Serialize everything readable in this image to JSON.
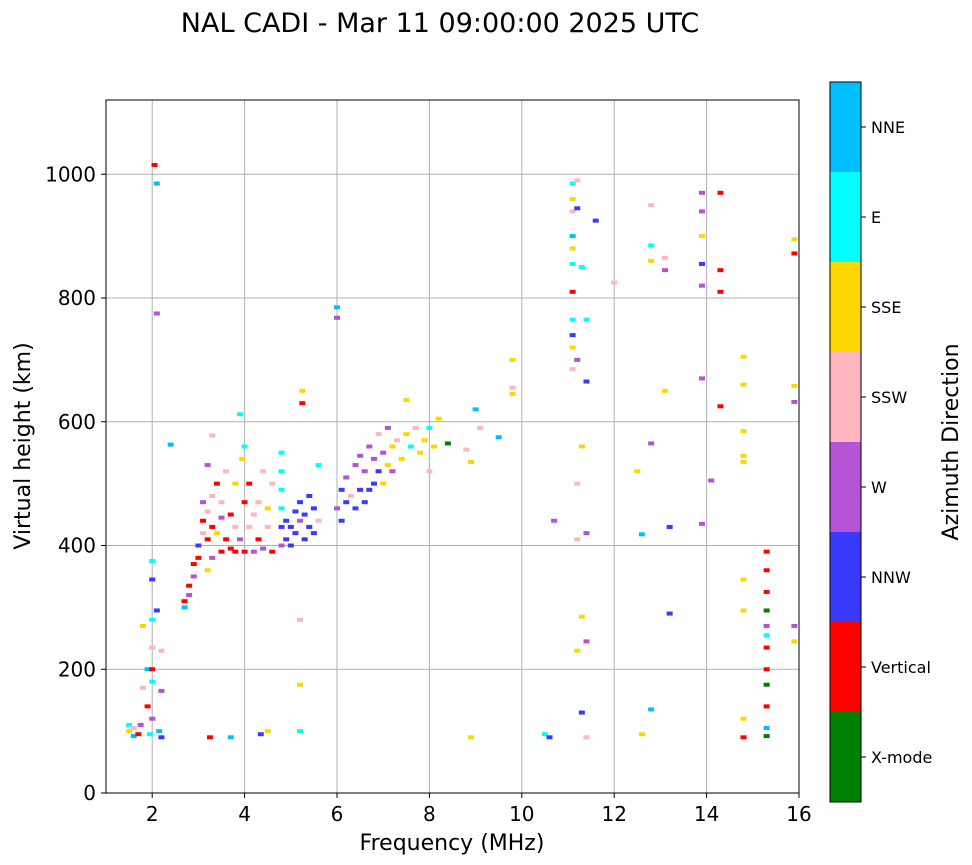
{
  "chart_data": {
    "type": "scatter",
    "title": "NAL CADI - Mar 11 09:00:00 2025 UTC",
    "xlabel": "Frequency (MHz)",
    "ylabel": "Virtual height (km)",
    "xlim": [
      1,
      16
    ],
    "ylim": [
      0,
      1120
    ],
    "x_ticks": [
      2,
      4,
      6,
      8,
      10,
      12,
      14,
      16
    ],
    "y_ticks": [
      0,
      200,
      400,
      600,
      800,
      1000
    ],
    "grid": true,
    "colorbar": {
      "title": "Azimuth Direction",
      "categories": [
        {
          "name": "X-mode",
          "color": "#008000"
        },
        {
          "name": "Vertical",
          "color": "#ff0000"
        },
        {
          "name": "NNW",
          "color": "#3a3aff"
        },
        {
          "name": "W",
          "color": "#b453d6"
        },
        {
          "name": "SSW",
          "color": "#ffb6c1"
        },
        {
          "name": "SSE",
          "color": "#ffd700"
        },
        {
          "name": "E",
          "color": "#00ffff"
        },
        {
          "name": "NNE",
          "color": "#00bfff"
        }
      ]
    },
    "points": [
      [
        1.5,
        110,
        "E"
      ],
      [
        1.5,
        100,
        "SSE"
      ],
      [
        1.6,
        92,
        "NNE"
      ],
      [
        1.6,
        105,
        "SSW"
      ],
      [
        1.7,
        95,
        "Vertical"
      ],
      [
        1.75,
        110,
        "W"
      ],
      [
        1.8,
        170,
        "SSW"
      ],
      [
        1.8,
        270,
        "SSE"
      ],
      [
        1.9,
        140,
        "Vertical"
      ],
      [
        1.9,
        200,
        "NNE"
      ],
      [
        1.95,
        95,
        "E"
      ],
      [
        2.0,
        120,
        "W"
      ],
      [
        2.0,
        180,
        "E"
      ],
      [
        2.0,
        200,
        "Vertical"
      ],
      [
        2.0,
        235,
        "SSW"
      ],
      [
        2.0,
        280,
        "E"
      ],
      [
        2.0,
        345,
        "NNW"
      ],
      [
        2.0,
        375,
        "E"
      ],
      [
        2.05,
        1015,
        "Vertical"
      ],
      [
        2.1,
        985,
        "NNE"
      ],
      [
        2.1,
        295,
        "NNW"
      ],
      [
        2.1,
        775,
        "W"
      ],
      [
        2.15,
        100,
        "NNE"
      ],
      [
        2.2,
        90,
        "NNW"
      ],
      [
        2.2,
        165,
        "W"
      ],
      [
        2.2,
        230,
        "SSW"
      ],
      [
        2.4,
        563,
        "NNE"
      ],
      [
        2.7,
        300,
        "NNE"
      ],
      [
        2.7,
        310,
        "Vertical"
      ],
      [
        2.8,
        320,
        "W"
      ],
      [
        2.8,
        335,
        "Vertical"
      ],
      [
        2.9,
        350,
        "W"
      ],
      [
        2.9,
        370,
        "Vertical"
      ],
      [
        3.0,
        380,
        "Vertical"
      ],
      [
        3.0,
        400,
        "NNW"
      ],
      [
        3.1,
        420,
        "SSW"
      ],
      [
        3.1,
        440,
        "Vertical"
      ],
      [
        3.1,
        470,
        "W"
      ],
      [
        3.2,
        360,
        "SSE"
      ],
      [
        3.2,
        410,
        "Vertical"
      ],
      [
        3.2,
        455,
        "SSW"
      ],
      [
        3.2,
        530,
        "W"
      ],
      [
        3.25,
        90,
        "Vertical"
      ],
      [
        3.3,
        380,
        "W"
      ],
      [
        3.3,
        430,
        "Vertical"
      ],
      [
        3.3,
        480,
        "SSW"
      ],
      [
        3.3,
        578,
        "SSW"
      ],
      [
        3.4,
        420,
        "SSE"
      ],
      [
        3.4,
        500,
        "Vertical"
      ],
      [
        3.5,
        390,
        "Vertical"
      ],
      [
        3.5,
        445,
        "W"
      ],
      [
        3.5,
        470,
        "SSW"
      ],
      [
        3.6,
        410,
        "Vertical"
      ],
      [
        3.6,
        520,
        "SSW"
      ],
      [
        3.7,
        395,
        "Vertical"
      ],
      [
        3.7,
        450,
        "Vertical"
      ],
      [
        3.7,
        90,
        "NNE"
      ],
      [
        3.8,
        390,
        "Vertical"
      ],
      [
        3.8,
        430,
        "SSW"
      ],
      [
        3.8,
        500,
        "SSE"
      ],
      [
        3.9,
        410,
        "W"
      ],
      [
        3.9,
        612,
        "E"
      ],
      [
        3.95,
        540,
        "SSE"
      ],
      [
        4.0,
        390,
        "Vertical"
      ],
      [
        4.0,
        470,
        "Vertical"
      ],
      [
        4.0,
        560,
        "E"
      ],
      [
        4.1,
        430,
        "SSW"
      ],
      [
        4.1,
        500,
        "Vertical"
      ],
      [
        4.2,
        390,
        "W"
      ],
      [
        4.2,
        450,
        "SSW"
      ],
      [
        4.3,
        410,
        "Vertical"
      ],
      [
        4.3,
        470,
        "SSW"
      ],
      [
        4.35,
        95,
        "NNW"
      ],
      [
        4.4,
        395,
        "W"
      ],
      [
        4.4,
        520,
        "SSW"
      ],
      [
        4.5,
        430,
        "SSW"
      ],
      [
        4.5,
        460,
        "SSE"
      ],
      [
        4.5,
        100,
        "SSE"
      ],
      [
        4.6,
        390,
        "Vertical"
      ],
      [
        4.6,
        500,
        "SSW"
      ],
      [
        4.8,
        400,
        "W"
      ],
      [
        4.8,
        430,
        "NNW"
      ],
      [
        4.8,
        460,
        "E"
      ],
      [
        4.8,
        490,
        "E"
      ],
      [
        4.8,
        520,
        "E"
      ],
      [
        4.8,
        550,
        "E"
      ],
      [
        4.9,
        410,
        "NNW"
      ],
      [
        4.9,
        440,
        "NNW"
      ],
      [
        5.0,
        400,
        "NNW"
      ],
      [
        5.0,
        430,
        "NNW"
      ],
      [
        5.1,
        420,
        "NNW"
      ],
      [
        5.1,
        455,
        "NNW"
      ],
      [
        5.2,
        440,
        "W"
      ],
      [
        5.2,
        470,
        "NNW"
      ],
      [
        5.2,
        100,
        "E"
      ],
      [
        5.2,
        175,
        "SSE"
      ],
      [
        5.2,
        280,
        "SSW"
      ],
      [
        5.25,
        630,
        "Vertical"
      ],
      [
        5.25,
        650,
        "SSE"
      ],
      [
        5.3,
        410,
        "NNW"
      ],
      [
        5.3,
        450,
        "NNW"
      ],
      [
        5.4,
        430,
        "NNW"
      ],
      [
        5.4,
        480,
        "NNW"
      ],
      [
        5.5,
        420,
        "NNW"
      ],
      [
        5.5,
        460,
        "NNW"
      ],
      [
        5.6,
        440,
        "SSW"
      ],
      [
        5.6,
        530,
        "E"
      ],
      [
        6.0,
        785,
        "NNE"
      ],
      [
        6.0,
        768,
        "W"
      ],
      [
        6.0,
        460,
        "W"
      ],
      [
        6.1,
        440,
        "NNW"
      ],
      [
        6.1,
        490,
        "NNW"
      ],
      [
        6.2,
        470,
        "NNW"
      ],
      [
        6.2,
        510,
        "W"
      ],
      [
        6.3,
        480,
        "SSW"
      ],
      [
        6.4,
        460,
        "NNW"
      ],
      [
        6.4,
        530,
        "W"
      ],
      [
        6.5,
        490,
        "NNW"
      ],
      [
        6.5,
        545,
        "W"
      ],
      [
        6.6,
        470,
        "NNW"
      ],
      [
        6.6,
        520,
        "W"
      ],
      [
        6.7,
        490,
        "NNW"
      ],
      [
        6.7,
        560,
        "W"
      ],
      [
        6.8,
        500,
        "NNW"
      ],
      [
        6.8,
        540,
        "W"
      ],
      [
        6.9,
        520,
        "NNW"
      ],
      [
        6.9,
        580,
        "SSW"
      ],
      [
        7.0,
        500,
        "SSE"
      ],
      [
        7.0,
        550,
        "W"
      ],
      [
        7.1,
        530,
        "SSE"
      ],
      [
        7.1,
        590,
        "W"
      ],
      [
        7.2,
        520,
        "W"
      ],
      [
        7.2,
        560,
        "SSE"
      ],
      [
        7.3,
        570,
        "SSW"
      ],
      [
        7.4,
        540,
        "SSE"
      ],
      [
        7.5,
        580,
        "SSE"
      ],
      [
        7.5,
        635,
        "SSE"
      ],
      [
        7.6,
        560,
        "E"
      ],
      [
        7.7,
        590,
        "SSW"
      ],
      [
        7.8,
        550,
        "SSE"
      ],
      [
        7.9,
        570,
        "SSE"
      ],
      [
        8.0,
        520,
        "SSW"
      ],
      [
        8.0,
        590,
        "E"
      ],
      [
        8.1,
        560,
        "SSE"
      ],
      [
        8.2,
        605,
        "SSE"
      ],
      [
        8.4,
        565,
        "X-mode"
      ],
      [
        8.8,
        555,
        "SSW"
      ],
      [
        8.9,
        535,
        "SSE"
      ],
      [
        9.0,
        620,
        "NNE"
      ],
      [
        9.1,
        590,
        "SSW"
      ],
      [
        9.5,
        575,
        "NNE"
      ],
      [
        9.8,
        700,
        "SSE"
      ],
      [
        9.8,
        655,
        "SSW"
      ],
      [
        9.8,
        645,
        "SSE"
      ],
      [
        10.5,
        95,
        "E"
      ],
      [
        10.6,
        90,
        "NNW"
      ],
      [
        10.7,
        440,
        "W"
      ],
      [
        8.9,
        90,
        "SSE"
      ],
      [
        11.1,
        985,
        "E"
      ],
      [
        11.1,
        960,
        "SSE"
      ],
      [
        11.1,
        940,
        "SSW"
      ],
      [
        11.1,
        900,
        "NNE"
      ],
      [
        11.1,
        880,
        "SSE"
      ],
      [
        11.1,
        855,
        "E"
      ],
      [
        11.1,
        810,
        "Vertical"
      ],
      [
        11.1,
        765,
        "E"
      ],
      [
        11.1,
        740,
        "NNW"
      ],
      [
        11.1,
        720,
        "SSE"
      ],
      [
        11.1,
        685,
        "SSW"
      ],
      [
        11.2,
        990,
        "SSW"
      ],
      [
        11.2,
        945,
        "NNW"
      ],
      [
        11.2,
        700,
        "W"
      ],
      [
        11.2,
        500,
        "SSW"
      ],
      [
        11.2,
        410,
        "SSW"
      ],
      [
        11.2,
        230,
        "SSE"
      ],
      [
        11.3,
        850,
        "E"
      ],
      [
        11.3,
        560,
        "SSE"
      ],
      [
        11.3,
        285,
        "SSE"
      ],
      [
        11.3,
        130,
        "NNW"
      ],
      [
        11.4,
        765,
        "E"
      ],
      [
        11.4,
        665,
        "NNW"
      ],
      [
        11.4,
        420,
        "W"
      ],
      [
        11.4,
        245,
        "W"
      ],
      [
        11.4,
        90,
        "SSW"
      ],
      [
        11.6,
        925,
        "NNW"
      ],
      [
        12.0,
        825,
        "SSW"
      ],
      [
        12.5,
        520,
        "SSE"
      ],
      [
        12.6,
        418,
        "NNE"
      ],
      [
        12.6,
        95,
        "SSE"
      ],
      [
        12.8,
        950,
        "SSW"
      ],
      [
        12.8,
        885,
        "E"
      ],
      [
        12.8,
        860,
        "SSE"
      ],
      [
        12.8,
        565,
        "W"
      ],
      [
        12.8,
        135,
        "NNE"
      ],
      [
        13.1,
        865,
        "SSW"
      ],
      [
        13.1,
        845,
        "W"
      ],
      [
        13.1,
        650,
        "SSE"
      ],
      [
        13.2,
        430,
        "NNW"
      ],
      [
        13.2,
        290,
        "NNW"
      ],
      [
        13.9,
        970,
        "W"
      ],
      [
        13.9,
        940,
        "W"
      ],
      [
        13.9,
        900,
        "SSE"
      ],
      [
        13.9,
        855,
        "NNW"
      ],
      [
        13.9,
        820,
        "W"
      ],
      [
        13.9,
        670,
        "W"
      ],
      [
        13.9,
        435,
        "W"
      ],
      [
        14.1,
        505,
        "W"
      ],
      [
        14.3,
        970,
        "Vertical"
      ],
      [
        14.3,
        845,
        "Vertical"
      ],
      [
        14.3,
        810,
        "Vertical"
      ],
      [
        14.3,
        625,
        "Vertical"
      ],
      [
        14.8,
        705,
        "SSE"
      ],
      [
        14.8,
        660,
        "SSE"
      ],
      [
        14.8,
        585,
        "SSE"
      ],
      [
        14.8,
        545,
        "SSE"
      ],
      [
        14.8,
        535,
        "SSE"
      ],
      [
        14.8,
        345,
        "SSE"
      ],
      [
        14.8,
        295,
        "SSE"
      ],
      [
        14.8,
        120,
        "SSE"
      ],
      [
        14.8,
        90,
        "Vertical"
      ],
      [
        15.3,
        390,
        "Vertical"
      ],
      [
        15.3,
        360,
        "Vertical"
      ],
      [
        15.3,
        325,
        "Vertical"
      ],
      [
        15.3,
        295,
        "X-mode"
      ],
      [
        15.3,
        270,
        "W"
      ],
      [
        15.3,
        255,
        "E"
      ],
      [
        15.3,
        235,
        "Vertical"
      ],
      [
        15.3,
        200,
        "Vertical"
      ],
      [
        15.3,
        175,
        "X-mode"
      ],
      [
        15.3,
        140,
        "Vertical"
      ],
      [
        15.3,
        105,
        "NNE"
      ],
      [
        15.3,
        92,
        "X-mode"
      ],
      [
        15.9,
        895,
        "SSE"
      ],
      [
        15.9,
        872,
        "Vertical"
      ],
      [
        15.9,
        658,
        "SSE"
      ],
      [
        15.9,
        632,
        "W"
      ],
      [
        15.9,
        270,
        "W"
      ],
      [
        15.9,
        245,
        "SSE"
      ]
    ]
  }
}
